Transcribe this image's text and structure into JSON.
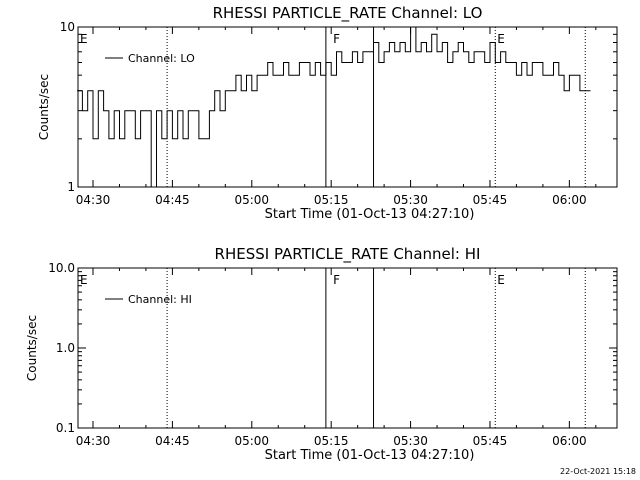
{
  "footer": {
    "timestamp": "22-Oct-2021 15:18"
  },
  "chart_data": [
    {
      "type": "line",
      "title": "RHESSI PARTICLE_RATE Channel: LO",
      "xlabel": "Start Time (01-Oct-13 04:27:10)",
      "ylabel": "Counts/sec",
      "y_scale": "log",
      "ylim": [
        1,
        10
      ],
      "y_tick_labels": [
        "1",
        "10"
      ],
      "x_tick_labels": [
        "04:30",
        "04:45",
        "05:00",
        "05:15",
        "05:30",
        "05:45",
        "06:00"
      ],
      "legend": {
        "label": "Channel: LO",
        "placement": "top-left"
      },
      "markers": [
        {
          "label": "E",
          "time": "04:27"
        },
        {
          "label": "F",
          "time": "05:15"
        },
        {
          "label": "E",
          "time": "05:46"
        }
      ],
      "vlines": [
        {
          "time": "04:44",
          "style": "dotted"
        },
        {
          "time": "05:14",
          "style": "solid"
        },
        {
          "time": "05:23",
          "style": "solid"
        },
        {
          "time": "05:46",
          "style": "dotted"
        },
        {
          "time": "06:03",
          "style": "dotted"
        }
      ],
      "series": [
        {
          "x": [
            "04:27",
            "04:28",
            "04:29",
            "04:30",
            "04:31",
            "04:32",
            "04:33",
            "04:34",
            "04:35",
            "04:36",
            "04:37",
            "04:38",
            "04:39",
            "04:40",
            "04:41",
            "04:42",
            "04:43",
            "04:44",
            "04:45",
            "04:46",
            "04:47",
            "04:48",
            "04:49",
            "04:50",
            "04:51",
            "04:52",
            "04:53",
            "04:54",
            "04:55",
            "04:56",
            "04:57",
            "04:58",
            "04:59",
            "05:00",
            "05:01",
            "05:02",
            "05:03",
            "05:04",
            "05:05",
            "05:06",
            "05:07",
            "05:08",
            "05:09",
            "05:10",
            "05:11",
            "05:12",
            "05:13",
            "05:14",
            "05:15",
            "05:16",
            "05:17",
            "05:18",
            "05:19",
            "05:20",
            "05:21",
            "05:22",
            "05:23",
            "05:24",
            "05:25",
            "05:26",
            "05:27",
            "05:28",
            "05:29",
            "05:30",
            "05:31",
            "05:32",
            "05:33",
            "05:34",
            "05:35",
            "05:36",
            "05:37",
            "05:38",
            "05:39",
            "05:40",
            "05:41",
            "05:42",
            "05:43",
            "05:44",
            "05:45",
            "05:46",
            "05:47",
            "05:48",
            "05:49",
            "05:50",
            "05:51",
            "05:52",
            "05:53",
            "05:54",
            "05:55",
            "05:56",
            "05:57",
            "05:58",
            "05:59",
            "06:00",
            "06:01",
            "06:02",
            "06:03"
          ],
          "values": [
            4,
            3,
            4,
            2,
            4,
            3,
            2,
            3,
            2,
            3,
            3,
            2,
            3,
            3,
            1,
            3,
            2,
            3,
            2,
            3,
            2,
            3,
            3,
            2,
            2,
            3,
            4,
            3,
            4,
            4,
            5,
            4,
            5,
            4,
            5,
            5,
            6,
            5,
            5,
            6,
            5,
            5,
            6,
            6,
            5,
            6,
            5,
            6,
            5,
            7,
            6,
            6,
            7,
            6,
            7,
            7,
            8,
            6,
            7,
            8,
            7,
            8,
            7,
            10,
            7,
            8,
            7,
            9,
            7,
            8,
            6,
            7,
            8,
            7,
            6,
            7,
            7,
            6,
            8,
            6,
            7,
            6,
            6,
            5,
            6,
            5,
            6,
            6,
            5,
            5,
            6,
            5,
            4,
            5,
            5,
            4,
            4
          ]
        }
      ]
    },
    {
      "type": "line",
      "title": "RHESSI PARTICLE_RATE Channel: HI",
      "xlabel": "Start Time (01-Oct-13 04:27:10)",
      "ylabel": "Counts/sec",
      "y_scale": "log",
      "ylim": [
        0.1,
        10
      ],
      "y_tick_labels": [
        "0.1",
        "1.0",
        "10.0"
      ],
      "x_tick_labels": [
        "04:30",
        "04:45",
        "05:00",
        "05:15",
        "05:30",
        "05:45",
        "06:00"
      ],
      "legend": {
        "label": "Channel: HI",
        "placement": "top-left"
      },
      "markers": [
        {
          "label": "E",
          "time": "04:27"
        },
        {
          "label": "F",
          "time": "05:15"
        },
        {
          "label": "E",
          "time": "05:46"
        }
      ],
      "vlines": [
        {
          "time": "04:44",
          "style": "dotted"
        },
        {
          "time": "05:14",
          "style": "solid"
        },
        {
          "time": "05:23",
          "style": "solid"
        },
        {
          "time": "05:46",
          "style": "dotted"
        },
        {
          "time": "06:03",
          "style": "dotted"
        }
      ],
      "series": []
    }
  ]
}
